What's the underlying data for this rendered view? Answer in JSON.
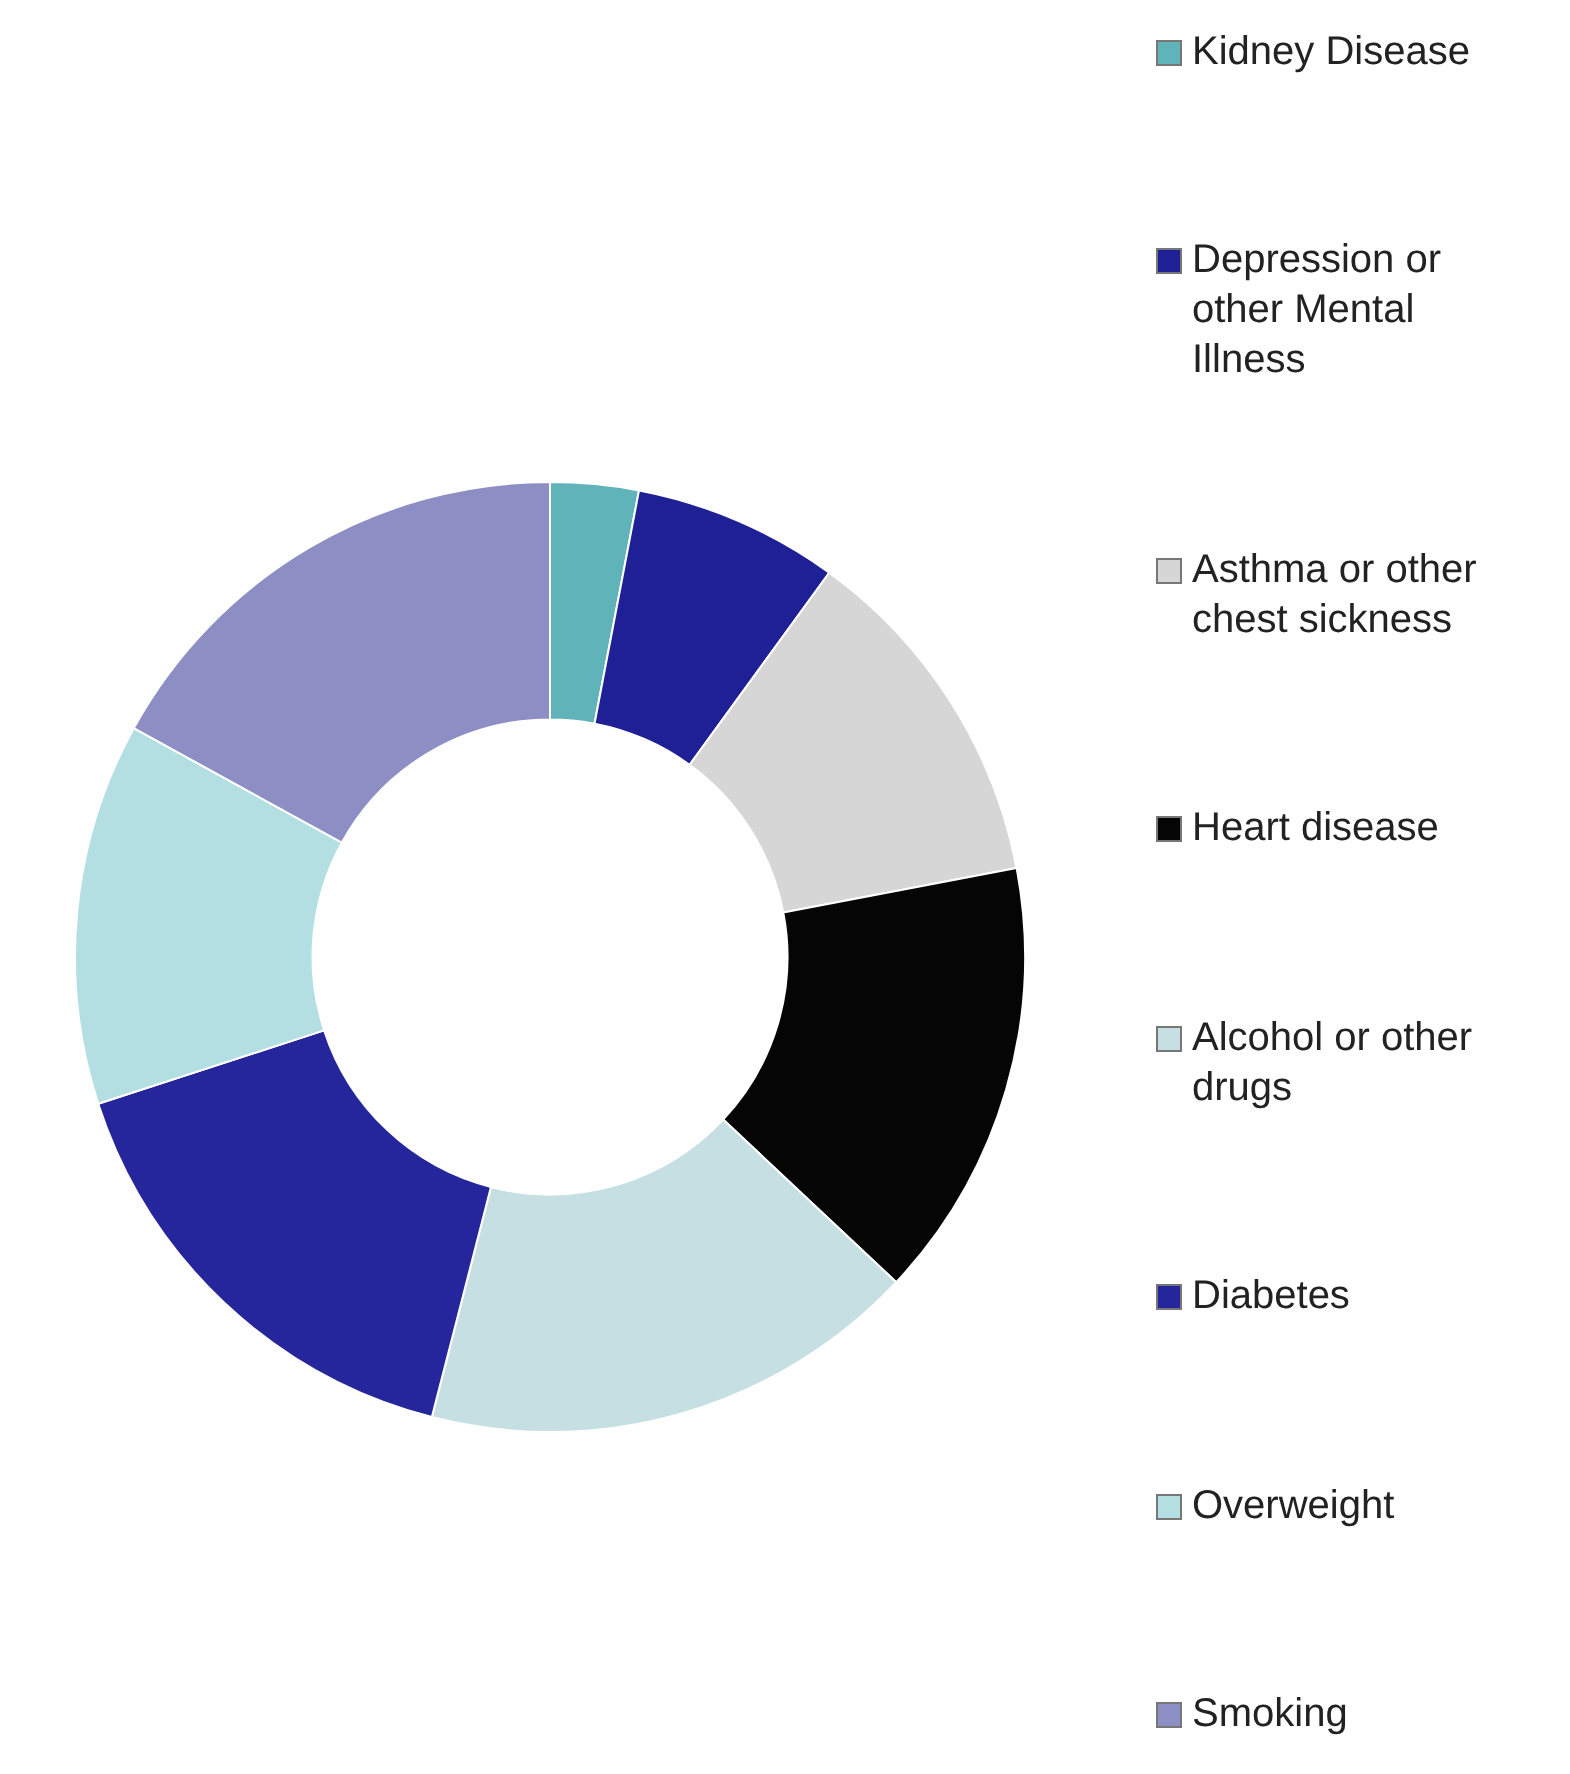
{
  "chart_data": {
    "type": "donut",
    "categories": [
      "Kidney Disease",
      "Depression or other Mental Illness",
      "Asthma or other chest sickness",
      "Heart disease",
      "Alcohol or other drugs",
      "Diabetes",
      "Overweight",
      "Smoking"
    ],
    "values": [
      3,
      7,
      12,
      15,
      17,
      16,
      13,
      17
    ],
    "colors": [
      "#5fb3b9",
      "#1f1f96",
      "#d6d6d6",
      "#050505",
      "#c5dfe3",
      "#25259c",
      "#b4dfe2",
      "#8c8ec4"
    ],
    "legend": "right"
  }
}
